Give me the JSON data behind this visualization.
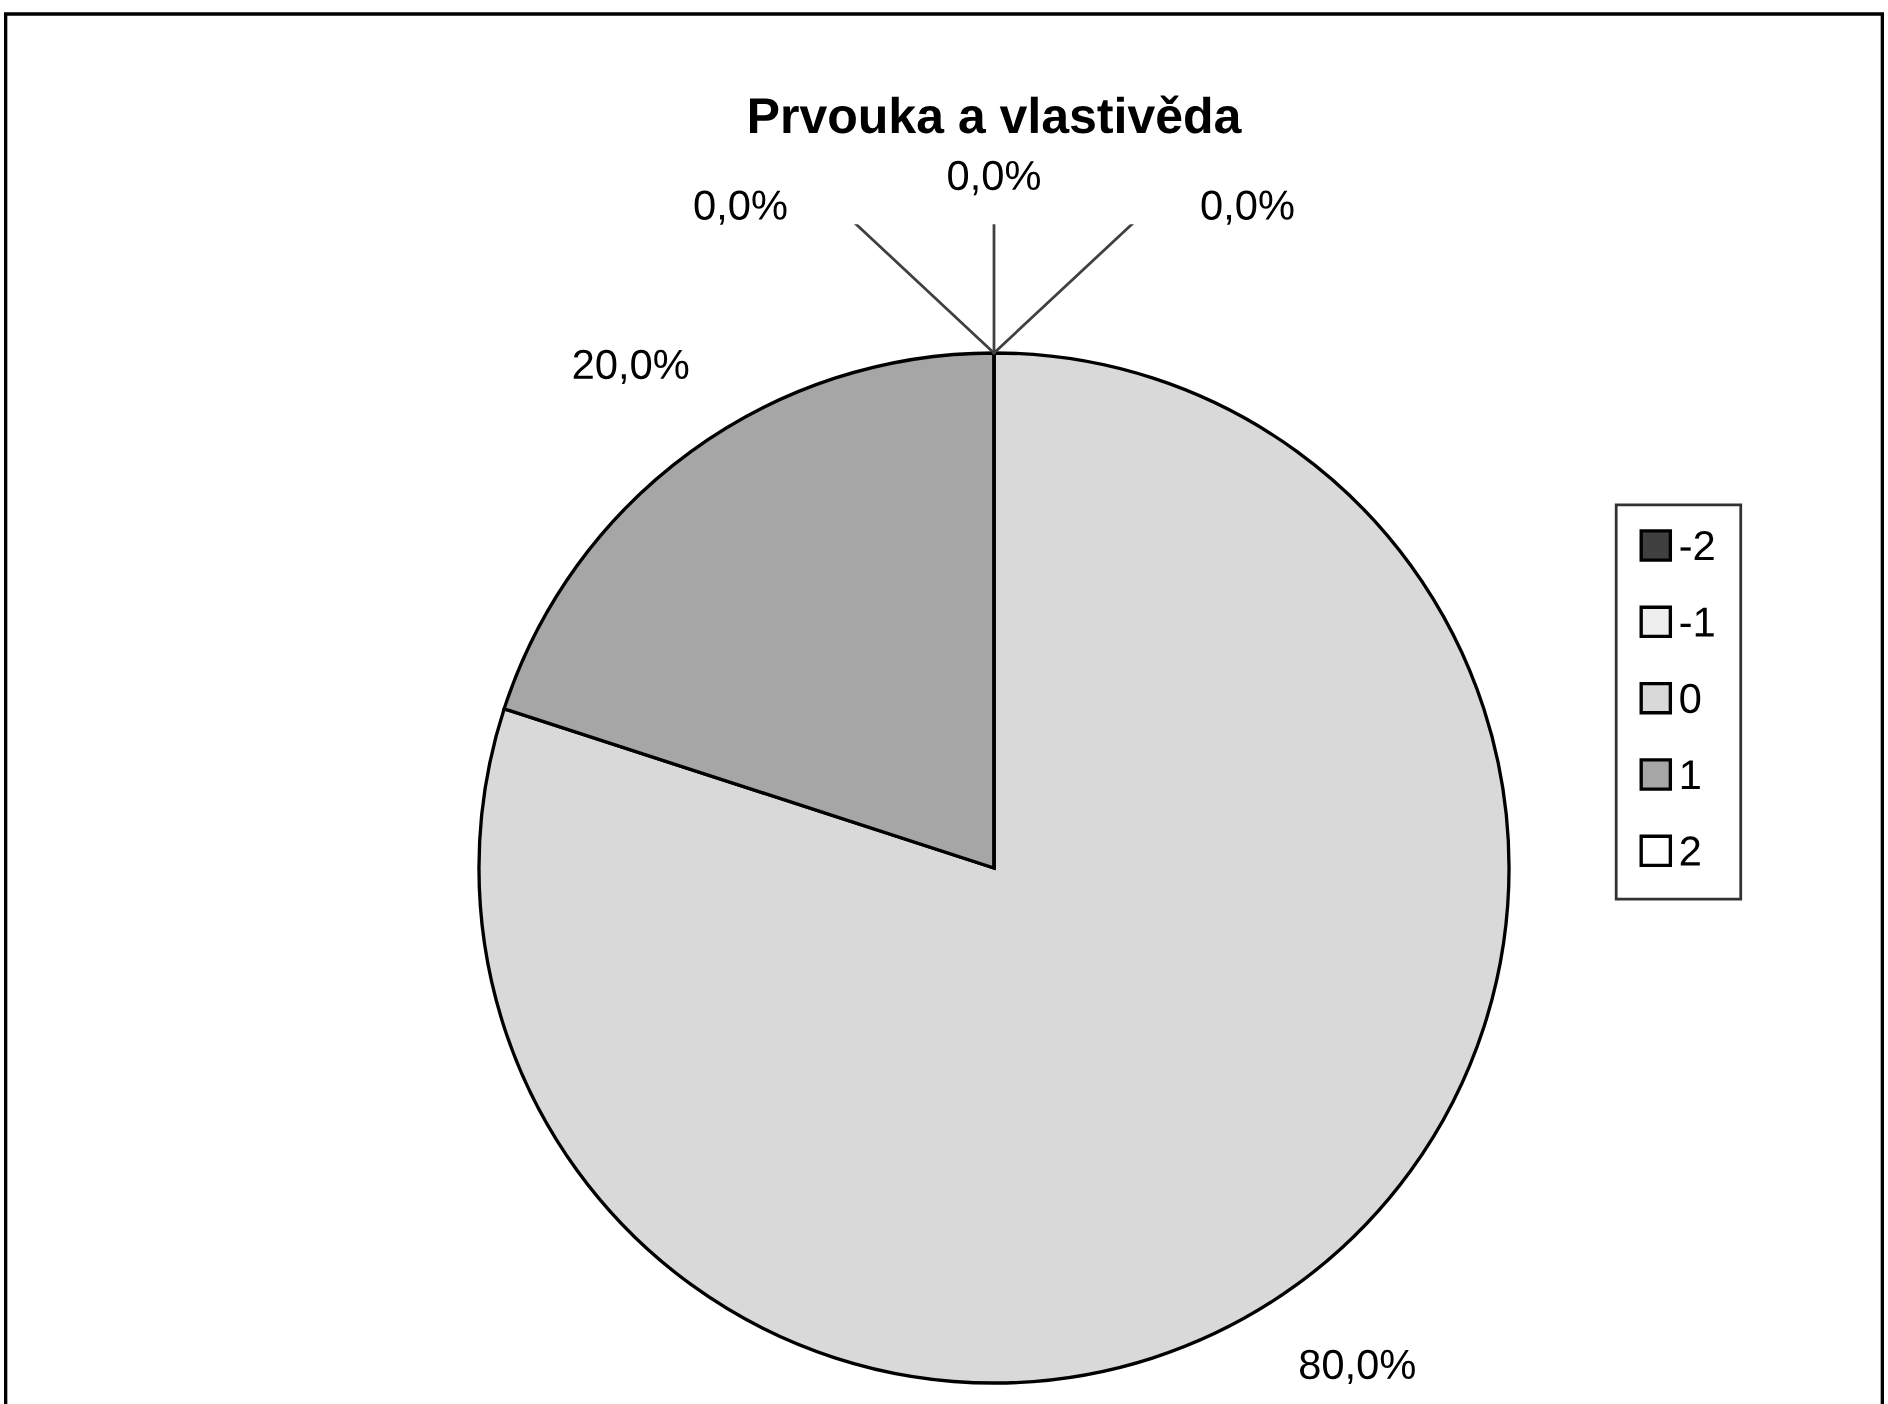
{
  "chart_data": {
    "type": "pie",
    "title": "Prvouka a vlastivěda",
    "categories": [
      "-2",
      "-1",
      "0",
      "1",
      "2"
    ],
    "values": [
      0,
      0,
      80,
      20,
      0
    ],
    "value_labels": [
      "0,0%",
      "0,0%",
      "80,0%",
      "20,0%",
      "0,0%"
    ],
    "colors": [
      "#404040",
      "#eeeeee",
      "#d9d9d9",
      "#a6a6a6",
      "#ffffff"
    ],
    "legend": "right"
  }
}
